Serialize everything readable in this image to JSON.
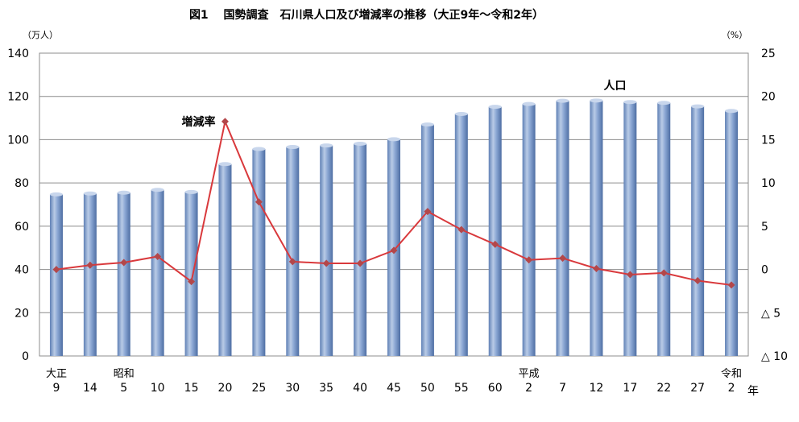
{
  "chart_data": {
    "type": "bar",
    "title": "図1　 国勢調査　石川県人口及び増減率の推移（大正9年～令和2年）",
    "left_unit": "（万人）",
    "right_unit": "（%）",
    "year_suffix": "年",
    "era_labels": [
      "大正",
      "",
      "昭和",
      "",
      "",
      "",
      "",
      "",
      "",
      "",
      "",
      "",
      "",
      "",
      "平成",
      "",
      "",
      "",
      "",
      "",
      "令和"
    ],
    "categories": [
      "9",
      "14",
      "5",
      "10",
      "15",
      "20",
      "25",
      "30",
      "35",
      "40",
      "45",
      "50",
      "55",
      "60",
      "2",
      "7",
      "12",
      "17",
      "22",
      "27",
      "2"
    ],
    "series": [
      {
        "name": "人口",
        "kind": "bar",
        "axis": "left",
        "color": "#7f9fcf",
        "values": [
          74.7,
          75.1,
          75.5,
          76.8,
          75.8,
          88.7,
          95.7,
          96.6,
          97.3,
          98.1,
          100.2,
          107.0,
          111.9,
          115.2,
          116.5,
          118.0,
          118.1,
          117.4,
          117.0,
          115.4,
          113.3
        ]
      },
      {
        "name": "増減率",
        "kind": "line",
        "axis": "right",
        "color": "#d9393c",
        "marker_color": "#b3474a",
        "values": [
          0.0,
          0.5,
          0.8,
          1.5,
          -1.4,
          17.1,
          7.8,
          0.9,
          0.7,
          0.7,
          2.2,
          6.7,
          4.6,
          2.9,
          1.1,
          1.3,
          0.1,
          -0.6,
          -0.4,
          -1.3,
          -1.8
        ]
      }
    ],
    "y_left": {
      "min": 0,
      "max": 140,
      "ticks": [
        0,
        20,
        40,
        60,
        80,
        100,
        120,
        140
      ]
    },
    "y_right": {
      "min": -10,
      "max": 25,
      "ticks": [
        {
          "value": 25,
          "label": "25"
        },
        {
          "value": 20,
          "label": "20"
        },
        {
          "value": 15,
          "label": "15"
        },
        {
          "value": 10,
          "label": "10"
        },
        {
          "value": 5,
          "label": "5"
        },
        {
          "value": 0,
          "label": "0"
        },
        {
          "value": -5,
          "label": "△ 5"
        },
        {
          "value": -10,
          "label": "△ 10"
        }
      ]
    },
    "grid": true,
    "annotations": [
      {
        "text": "人口",
        "series": "人口",
        "index": 15
      },
      {
        "text": "増減率",
        "series": "増減率",
        "index": 5
      }
    ]
  }
}
